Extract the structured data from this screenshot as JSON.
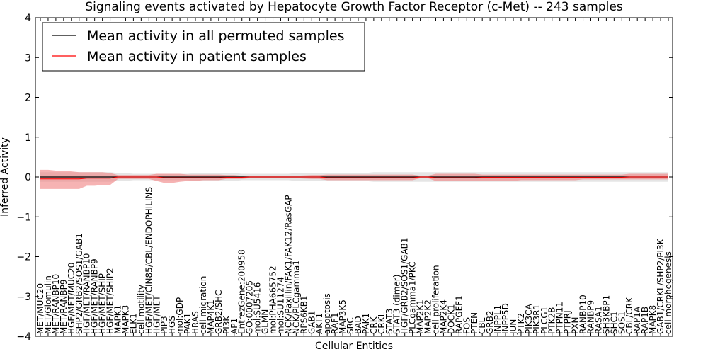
{
  "chart_data": {
    "type": "line",
    "title": "Signaling events activated by Hepatocyte Growth Factor Receptor (c-Met) -- 243 samples",
    "xlabel": "Cellular Entities",
    "ylabel": "Inferred Activity",
    "ylim": [
      -4,
      4
    ],
    "yticks": [
      -4,
      -3,
      -2,
      -1,
      0,
      1,
      2,
      3,
      4
    ],
    "ytick_labels": [
      "−4",
      "−3",
      "−2",
      "−1",
      "0",
      "1",
      "2",
      "3",
      "4"
    ],
    "legend_position": "top-left",
    "categories": [
      "MET/MUC20",
      "MET/Glomulin",
      "MET/RANBP10",
      "MET/RANBP9",
      "HGF/MET/MUC20",
      "SHP2/GRB2/SOS1/GAB1",
      "HGF/MET/RANBP10",
      "HGF/MET/RANBP9",
      "HGF/MET/SHIP",
      "HGF/MET/SHIP2",
      "MAPK1",
      "MAPK3",
      "ELK1",
      "cell motility",
      "HGF/MET/CIN85/CBL/ENDOPHILINS",
      "HGF/MET",
      "PIP3",
      "HGS",
      "mol:GDP",
      "PAK1",
      "HRAS",
      "cell migration",
      "MAP4K1",
      "GRB2/SHC",
      "PI3K",
      "AP1",
      "EntrezGene:200958",
      "GO:0007205",
      "mol:SU5416",
      "GLMN",
      "mol:PHA665752",
      "mol:SU11274",
      "NCK/Paxillin/FAK1/FAK12/RasGAP",
      "NCK/PLCgamma1",
      "RPS6KB1",
      "GAB1",
      "AKT1",
      "apoptosis",
      "RAF1",
      "MAP3K5",
      "SRC",
      "BAD",
      "PAK1",
      "CRK",
      "CRKL",
      "STAT3",
      "STAT3 (dimer)",
      "HGF/GRB2/SOS1/GAB1",
      "PLCgamma1/PKC",
      "MAP2K1",
      "MAP2K2",
      "cell proliferation",
      "MAP2K4",
      "DOCK1",
      "RAPGEF1",
      "FOS",
      "PTEN",
      "CBL",
      "GRB2",
      "INPPL1",
      "INPP5D",
      "JUN",
      "PTK2",
      "PIK3CA",
      "PIK3R1",
      "PLCG1",
      "PTK2B",
      "PTPN11",
      "PTPRJ",
      "PXN",
      "RANBP10",
      "RANBP9",
      "RASA1",
      "SH3KBP1",
      "SHC1",
      "SOS1",
      "CBL/CRK",
      "RAP1A",
      "RAP1B",
      "MAPK8",
      "GAB1/CRKL/SHP2/PI3K",
      "cell morphogenesis"
    ],
    "series": [
      {
        "name": "Mean activity in all permuted samples",
        "color": "#000000",
        "values": [
          0,
          0,
          0,
          0,
          0,
          0,
          0,
          0,
          0,
          0,
          0,
          0,
          0,
          0,
          0,
          0,
          0,
          0,
          0,
          0,
          0,
          0,
          0,
          0,
          0,
          0,
          0,
          0,
          0,
          0,
          0,
          0,
          0,
          0,
          0,
          0,
          0,
          0,
          0,
          0,
          0,
          0,
          0,
          0,
          0,
          0,
          0,
          0,
          0,
          0,
          0,
          0,
          0,
          0,
          0,
          0,
          0,
          0,
          0,
          0,
          0,
          0,
          0,
          0,
          0,
          0,
          0,
          0,
          0,
          0,
          0,
          0,
          0,
          0,
          0,
          0,
          0,
          0,
          0,
          0,
          0,
          0
        ],
        "band_low": [
          -0.12,
          -0.12,
          -0.12,
          -0.12,
          -0.12,
          -0.12,
          -0.12,
          -0.12,
          -0.12,
          -0.12,
          -0.1,
          -0.1,
          -0.08,
          -0.08,
          -0.08,
          -0.08,
          -0.08,
          -0.08,
          -0.08,
          -0.08,
          -0.1,
          -0.1,
          -0.1,
          -0.1,
          -0.1,
          -0.1,
          -0.08,
          -0.08,
          -0.08,
          -0.08,
          -0.08,
          -0.08,
          -0.08,
          -0.1,
          -0.1,
          -0.1,
          -0.1,
          -0.1,
          -0.1,
          -0.1,
          -0.1,
          -0.1,
          -0.1,
          -0.12,
          -0.12,
          -0.12,
          -0.12,
          -0.12,
          -0.12,
          -0.12,
          -0.12,
          -0.12,
          -0.12,
          -0.12,
          -0.12,
          -0.12,
          -0.12,
          -0.12,
          -0.12,
          -0.12,
          -0.12,
          -0.12,
          -0.12,
          -0.12,
          -0.12,
          -0.12,
          -0.12,
          -0.12,
          -0.12,
          -0.12,
          -0.12,
          -0.12,
          -0.12,
          -0.12,
          -0.12,
          -0.12,
          -0.12,
          -0.12,
          -0.12,
          -0.12,
          -0.12,
          -0.12
        ],
        "band_high": [
          0.12,
          0.12,
          0.12,
          0.12,
          0.12,
          0.12,
          0.12,
          0.12,
          0.12,
          0.12,
          0.1,
          0.1,
          0.08,
          0.08,
          0.08,
          0.08,
          0.08,
          0.08,
          0.08,
          0.08,
          0.1,
          0.1,
          0.1,
          0.1,
          0.1,
          0.1,
          0.08,
          0.08,
          0.08,
          0.08,
          0.08,
          0.08,
          0.08,
          0.1,
          0.1,
          0.1,
          0.1,
          0.1,
          0.1,
          0.1,
          0.1,
          0.1,
          0.1,
          0.12,
          0.12,
          0.12,
          0.12,
          0.12,
          0.12,
          0.12,
          0.12,
          0.12,
          0.12,
          0.12,
          0.12,
          0.12,
          0.12,
          0.12,
          0.12,
          0.12,
          0.12,
          0.12,
          0.12,
          0.12,
          0.12,
          0.12,
          0.12,
          0.12,
          0.12,
          0.12,
          0.12,
          0.12,
          0.12,
          0.12,
          0.12,
          0.12,
          0.12,
          0.12,
          0.12,
          0.12,
          0.12,
          0.12
        ]
      },
      {
        "name": "Mean activity in patient samples",
        "color": "#ff0000",
        "band_color": "#f08080",
        "values": [
          -0.05,
          -0.05,
          -0.05,
          -0.05,
          -0.05,
          -0.05,
          -0.03,
          -0.03,
          -0.03,
          -0.03,
          0,
          0,
          0,
          0,
          0,
          0,
          -0.02,
          -0.02,
          -0.02,
          -0.02,
          -0.02,
          -0.02,
          -0.02,
          -0.02,
          -0.01,
          -0.01,
          -0.01,
          0,
          0,
          0,
          0,
          0,
          0,
          0,
          0,
          0,
          0,
          -0.02,
          -0.02,
          -0.02,
          -0.02,
          -0.02,
          -0.02,
          -0.02,
          -0.02,
          -0.02,
          -0.02,
          -0.02,
          -0.02,
          0,
          0,
          -0.02,
          -0.02,
          -0.02,
          -0.02,
          -0.02,
          -0.02,
          -0.01,
          -0.01,
          -0.01,
          -0.01,
          -0.01,
          -0.01,
          -0.01,
          -0.01,
          -0.01,
          -0.01,
          -0.01,
          -0.01,
          -0.01,
          -0.01,
          -0.01,
          -0.01,
          -0.01,
          -0.01,
          -0.01,
          0,
          0,
          0,
          0,
          0,
          0
        ],
        "band_low": [
          -0.3,
          -0.3,
          -0.3,
          -0.3,
          -0.3,
          -0.3,
          -0.22,
          -0.22,
          -0.2,
          -0.2,
          -0.05,
          -0.05,
          -0.05,
          -0.05,
          -0.05,
          -0.1,
          -0.15,
          -0.15,
          -0.12,
          -0.1,
          -0.1,
          -0.08,
          -0.08,
          -0.08,
          -0.05,
          -0.05,
          -0.05,
          -0.03,
          -0.03,
          -0.03,
          -0.03,
          -0.03,
          -0.03,
          -0.03,
          -0.04,
          -0.05,
          -0.05,
          -0.08,
          -0.08,
          -0.08,
          -0.08,
          -0.08,
          -0.08,
          -0.08,
          -0.08,
          -0.08,
          -0.08,
          -0.08,
          -0.08,
          -0.03,
          -0.03,
          -0.1,
          -0.1,
          -0.1,
          -0.1,
          -0.1,
          -0.1,
          -0.1,
          -0.1,
          -0.1,
          -0.1,
          -0.1,
          -0.08,
          -0.08,
          -0.08,
          -0.08,
          -0.08,
          -0.08,
          -0.08,
          -0.08,
          -0.06,
          -0.06,
          -0.06,
          -0.06,
          -0.06,
          -0.06,
          -0.06,
          -0.06,
          -0.06,
          -0.06,
          -0.06,
          -0.06
        ],
        "band_high": [
          0.18,
          0.18,
          0.16,
          0.16,
          0.14,
          0.12,
          0.12,
          0.12,
          0.12,
          0.1,
          0.05,
          0.05,
          0.05,
          0.05,
          0.05,
          0.08,
          0.08,
          0.08,
          0.08,
          0.06,
          0.06,
          0.06,
          0.06,
          0.06,
          0.05,
          0.05,
          0.03,
          0.03,
          0.03,
          0.03,
          0.03,
          0.03,
          0.03,
          0.03,
          0.04,
          0.05,
          0.05,
          0.06,
          0.06,
          0.06,
          0.06,
          0.06,
          0.06,
          0.06,
          0.06,
          0.06,
          0.06,
          0.06,
          0.06,
          0.03,
          0.03,
          0.08,
          0.08,
          0.08,
          0.08,
          0.08,
          0.08,
          0.06,
          0.06,
          0.06,
          0.06,
          0.06,
          0.06,
          0.06,
          0.06,
          0.06,
          0.06,
          0.06,
          0.06,
          0.06,
          0.06,
          0.06,
          0.06,
          0.06,
          0.06,
          0.06,
          0.08,
          0.08,
          0.08,
          0.08,
          0.08,
          0.08
        ]
      }
    ]
  }
}
